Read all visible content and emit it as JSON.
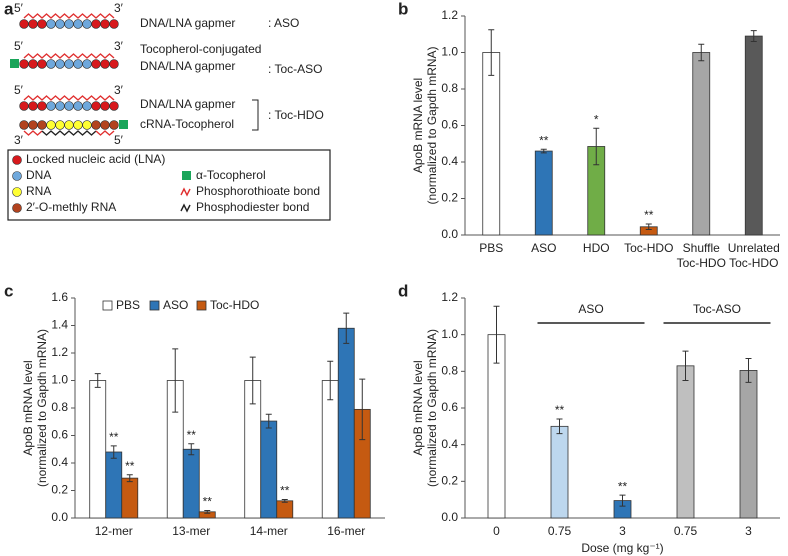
{
  "panel_a": {
    "panel": "a",
    "strands": [
      {
        "ends": [
          "5′",
          "3′"
        ],
        "lines": [
          "DNA/LNA gapmer"
        ],
        "name": ": ASO"
      },
      {
        "ends": [
          "5′",
          "3′"
        ],
        "lines": [
          "Tocopherol-conjugated",
          "DNA/LNA gapmer"
        ],
        "name": ": Toc-ASO"
      },
      {
        "ends": [
          "5′",
          "3′",
          "3′",
          "5′"
        ],
        "lines": [
          "DNA/LNA gapmer",
          "cRNA-Tocopherol"
        ],
        "name": ": Toc-HDO"
      }
    ],
    "legend": [
      "Locked nucleic acid (LNA)",
      "DNA",
      "RNA",
      "2′-O-methly RNA",
      "α-Tocopherol",
      "Phosphorothioate bond",
      "Phosphodiester bond"
    ]
  },
  "chart_data": [
    {
      "type": "bar",
      "panel": "b",
      "ylabel": [
        "ApoB mRNA level",
        "(normalized to Gapdh mRNA)"
      ],
      "categories": [
        [
          "PBS"
        ],
        [
          "ASO"
        ],
        [
          "HDO"
        ],
        [
          "Toc-HDO"
        ],
        [
          "Shuffle",
          "Toc-HDO"
        ],
        [
          "Unrelated",
          "Toc-HDO"
        ]
      ],
      "values": [
        1.0,
        0.46,
        0.485,
        0.045,
        1.0,
        1.09
      ],
      "errors": [
        0.125,
        0.01,
        0.1,
        0.015,
        0.045,
        0.03
      ],
      "colors": [
        "#ffffff",
        "#2e75b6",
        "#70ad47",
        "#c55a11",
        "#a6a6a6",
        "#595959"
      ],
      "annotations": [
        null,
        "**",
        "*",
        "**",
        null,
        null
      ],
      "ylim": [
        0,
        1.2
      ],
      "yticks": [
        {
          "value": 0,
          "label": "0.0"
        },
        {
          "value": 0.2,
          "label": "0.2"
        },
        {
          "value": 0.4,
          "label": "0.4"
        },
        {
          "value": 0.6,
          "label": "0.6"
        },
        {
          "value": 0.8,
          "label": "0.8"
        },
        {
          "value": 1.0,
          "label": "1.0"
        },
        {
          "value": 1.2,
          "label": "1.2"
        }
      ]
    },
    {
      "type": "bar",
      "panel": "c",
      "ylabel": [
        "ApoB mRNA level",
        "(normalized to Gapdh mRNA)"
      ],
      "categories": [
        [
          "12-mer"
        ],
        [
          "13-mer"
        ],
        [
          "14-mer"
        ],
        [
          "16-mer"
        ]
      ],
      "series": [
        {
          "name": "PBS",
          "color": "#ffffff",
          "values": [
            1.0,
            1.0,
            1.0,
            1.0
          ],
          "errors": [
            0.05,
            0.23,
            0.17,
            0.14
          ],
          "annotations": [
            null,
            null,
            null,
            null
          ]
        },
        {
          "name": "ASO",
          "color": "#2e75b6",
          "values": [
            0.48,
            0.5,
            0.705,
            1.38
          ],
          "errors": [
            0.045,
            0.04,
            0.05,
            0.11
          ],
          "annotations": [
            "**",
            "**",
            null,
            null
          ]
        },
        {
          "name": "Toc-HDO",
          "color": "#c55a11",
          "values": [
            0.29,
            0.045,
            0.125,
            0.79
          ],
          "errors": [
            0.025,
            0.01,
            0.01,
            0.22
          ],
          "annotations": [
            "**",
            "**",
            "**",
            null
          ]
        }
      ],
      "legend": "top",
      "ylim": [
        0,
        1.6
      ],
      "yticks": [
        {
          "value": 0,
          "label": "0.0"
        },
        {
          "value": 0.2,
          "label": "0.2"
        },
        {
          "value": 0.4,
          "label": "0.4"
        },
        {
          "value": 0.6,
          "label": "0.6"
        },
        {
          "value": 0.8,
          "label": "0.8"
        },
        {
          "value": 1.0,
          "label": "1.0"
        },
        {
          "value": 1.2,
          "label": "1.2"
        },
        {
          "value": 1.4,
          "label": "1.4"
        },
        {
          "value": 1.6,
          "label": "1.6"
        }
      ]
    },
    {
      "type": "bar",
      "panel": "d",
      "ylabel": [
        "ApoB mRNA level",
        "(normalized to Gapdh mRNA)"
      ],
      "xlabel": "Dose (mg kg⁻¹)",
      "categories": [
        [
          "0"
        ],
        [
          "0.75"
        ],
        [
          "3"
        ],
        [
          "0.75"
        ],
        [
          "3"
        ]
      ],
      "group_labels": [
        "ASO",
        "Toc-ASO"
      ],
      "values": [
        1.0,
        0.5,
        0.095,
        0.83,
        0.805
      ],
      "errors": [
        0.155,
        0.04,
        0.03,
        0.08,
        0.065
      ],
      "colors": [
        "#ffffff",
        "#bdd7ee",
        "#2e75b6",
        "#bfbfbf",
        "#a6a6a6"
      ],
      "annotations": [
        null,
        "**",
        "**",
        null,
        null
      ],
      "ylim": [
        0,
        1.2
      ],
      "yticks": [
        {
          "value": 0,
          "label": "0.0"
        },
        {
          "value": 0.2,
          "label": "0.2"
        },
        {
          "value": 0.4,
          "label": "0.4"
        },
        {
          "value": 0.6,
          "label": "0.6"
        },
        {
          "value": 0.8,
          "label": "0.8"
        },
        {
          "value": 1.0,
          "label": "1.0"
        },
        {
          "value": 1.2,
          "label": "1.2"
        }
      ]
    }
  ]
}
